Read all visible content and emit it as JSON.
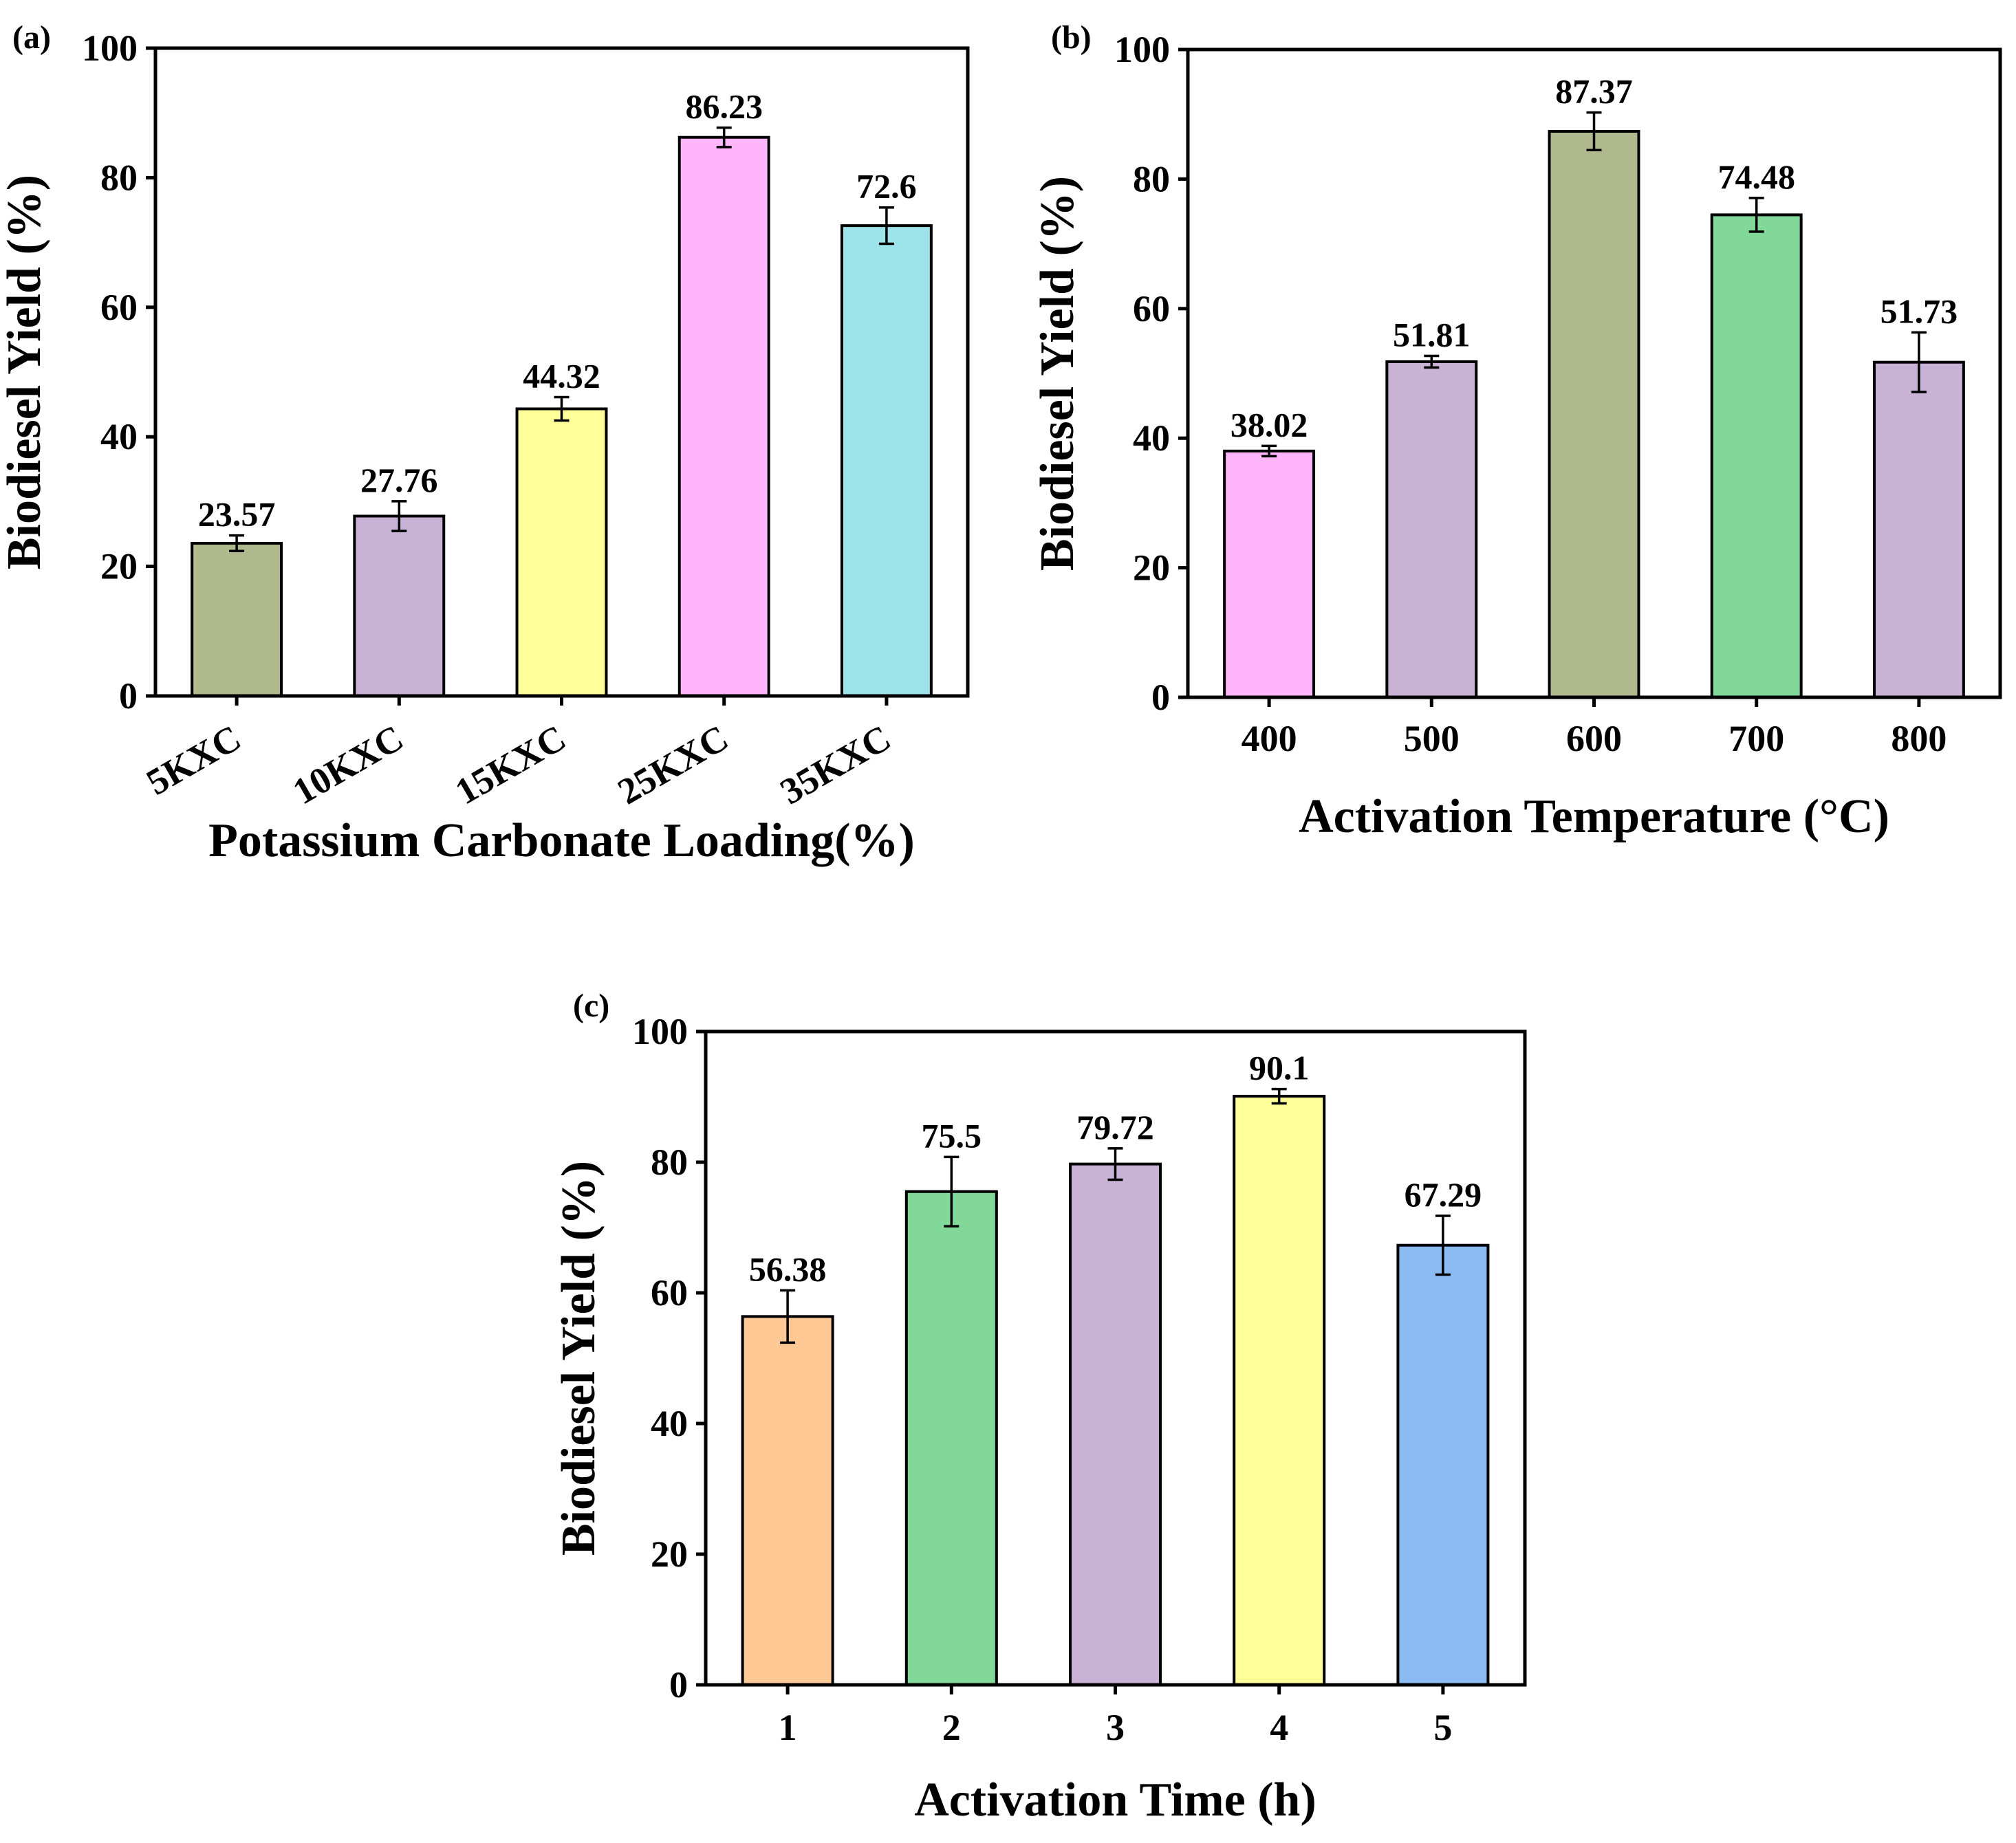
{
  "chart_data": [
    {
      "type": "bar",
      "panel_label": "(a)",
      "categories": [
        "5KXC",
        "10KXC",
        "15KXC",
        "25KXC",
        "35KXC"
      ],
      "values": [
        23.57,
        27.76,
        44.32,
        86.23,
        72.6
      ],
      "value_labels": [
        "23.57",
        "27.76",
        "44.32",
        "86.23",
        "72.6"
      ],
      "errors": [
        1.2,
        2.3,
        1.8,
        1.5,
        2.8
      ],
      "colors": [
        "#b0b88e",
        "#c8b2d6",
        "#ffff99",
        "#ffb5fa",
        "#9fe3ea"
      ],
      "xlabel": "Potassium Carbonate Loading(%)",
      "ylabel": "Biodiesel Yield (%)",
      "ylim": [
        0,
        100
      ],
      "yticks": [
        0,
        20,
        40,
        60,
        80,
        100
      ],
      "rotate_xticks": true
    },
    {
      "type": "bar",
      "panel_label": "(b)",
      "categories": [
        "400",
        "500",
        "600",
        "700",
        "800"
      ],
      "values": [
        38.02,
        51.81,
        87.37,
        74.48,
        51.73
      ],
      "value_labels": [
        "38.02",
        "51.81",
        "87.37",
        "74.48",
        "51.73"
      ],
      "errors": [
        0.8,
        0.9,
        2.9,
        2.6,
        4.6
      ],
      "colors": [
        "#ffb5fa",
        "#c8b2d6",
        "#b0b88e",
        "#82d899",
        "#c8b2d6"
      ],
      "xlabel": "Activation Temperature (°C)",
      "ylabel": "Biodiesel Yield (%)",
      "ylim": [
        0,
        100
      ],
      "yticks": [
        0,
        20,
        40,
        60,
        80,
        100
      ],
      "rotate_xticks": false
    },
    {
      "type": "bar",
      "panel_label": "(c)",
      "categories": [
        "1",
        "2",
        "3",
        "4",
        "5"
      ],
      "values": [
        56.38,
        75.5,
        79.72,
        90.1,
        67.29
      ],
      "value_labels": [
        "56.38",
        "75.5",
        "79.72",
        "90.1",
        "67.29"
      ],
      "errors": [
        4.0,
        5.3,
        2.4,
        1.1,
        4.5
      ],
      "colors": [
        "#ffc996",
        "#82d899",
        "#c8b2d6",
        "#ffff99",
        "#8cbaf2"
      ],
      "xlabel": "Activation Time (h)",
      "ylabel": "Biodiesel Yield (%)",
      "ylim": [
        0,
        100
      ],
      "yticks": [
        0,
        20,
        40,
        60,
        80,
        100
      ],
      "rotate_xticks": false
    }
  ]
}
